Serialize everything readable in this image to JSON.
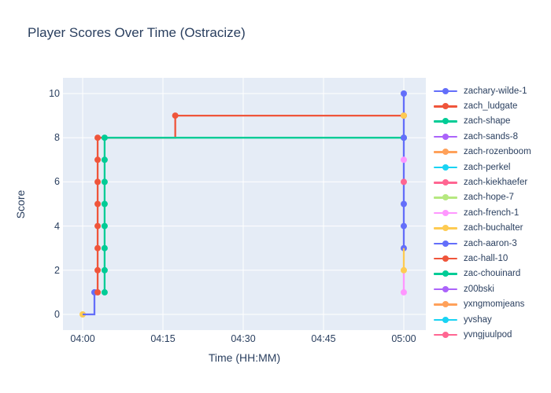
{
  "title": "Player Scores Over Time (Ostracize)",
  "axes": {
    "x_label": "Time (HH:MM)",
    "y_label": "Score",
    "x_ticks": [
      {
        "m": 0,
        "label": "04:00"
      },
      {
        "m": 15,
        "label": "04:15"
      },
      {
        "m": 30,
        "label": "04:30"
      },
      {
        "m": 45,
        "label": "04:45"
      },
      {
        "m": 60,
        "label": "05:00"
      }
    ],
    "y_ticks": [
      0,
      2,
      4,
      6,
      8,
      10
    ],
    "x_range_minutes": [
      -3.68,
      64.12
    ],
    "y_range": [
      -0.712,
      10.712
    ]
  },
  "colors": {
    "plot_background": "#E5ECF6",
    "gridline": "#FFFFFF",
    "text": "#2a3f5f"
  },
  "legend": {
    "items": [
      {
        "name": "zachary-wilde-1",
        "color": "#636EFA"
      },
      {
        "name": "zach_ludgate",
        "color": "#EF553B"
      },
      {
        "name": "zach-shape",
        "color": "#00CC96"
      },
      {
        "name": "zach-sands-8",
        "color": "#AB63FA"
      },
      {
        "name": "zach-rozenboom",
        "color": "#FFA15A"
      },
      {
        "name": "zach-perkel",
        "color": "#19D3F3"
      },
      {
        "name": "zach-kiekhaefer",
        "color": "#FF6692"
      },
      {
        "name": "zach-hope-7",
        "color": "#B6E880"
      },
      {
        "name": "zach-french-1",
        "color": "#FF97FF"
      },
      {
        "name": "zach-buchalter",
        "color": "#FECB52"
      },
      {
        "name": "zach-aaron-3",
        "color": "#636EFA"
      },
      {
        "name": "zac-hall-10",
        "color": "#EF553B"
      },
      {
        "name": "zac-chouinard",
        "color": "#00CC96"
      },
      {
        "name": "z00bski",
        "color": "#AB63FA"
      },
      {
        "name": "yxngmomjeans",
        "color": "#FFA15A"
      },
      {
        "name": "yvshay",
        "color": "#19D3F3"
      },
      {
        "name": "yvngjuulpod",
        "color": "#FF6692"
      }
    ]
  },
  "chart_data": {
    "type": "line",
    "title": "Player Scores Over Time (Ostracize)",
    "xlabel": "Time (HH:MM)",
    "ylabel": "Score",
    "x_unit": "minutes after 04:00",
    "ylim": [
      -0.712,
      10.712
    ],
    "grid": true,
    "legend_position": "right",
    "line_shape": "hv",
    "series": [
      {
        "name": "zach-buchalter",
        "color": "#FECB52",
        "line": [],
        "markers": [
          [
            0,
            0
          ]
        ]
      },
      {
        "name": "zachary-wilde-1",
        "color": "#636EFA",
        "line": [
          [
            0,
            0
          ],
          [
            2.2,
            1
          ]
        ],
        "markers": [
          [
            2.2,
            1
          ]
        ]
      },
      {
        "name": "zach_ludgate",
        "color": "#EF553B",
        "line": [
          [
            2.8,
            1
          ],
          [
            2.8,
            2
          ],
          [
            2.8,
            3
          ],
          [
            2.8,
            4
          ],
          [
            2.8,
            5
          ],
          [
            2.8,
            6
          ],
          [
            2.8,
            7
          ],
          [
            2.8,
            8
          ],
          [
            17.3,
            9
          ],
          [
            60,
            9
          ]
        ],
        "markers": [
          [
            2.8,
            1
          ],
          [
            2.8,
            2
          ],
          [
            2.8,
            3
          ],
          [
            2.8,
            4
          ],
          [
            2.8,
            5
          ],
          [
            2.8,
            6
          ],
          [
            2.8,
            7
          ],
          [
            2.8,
            8
          ],
          [
            17.3,
            9
          ],
          [
            60,
            9
          ]
        ]
      },
      {
        "name": "zach-shape",
        "color": "#00CC96",
        "line": [
          [
            4.1,
            1
          ],
          [
            4.1,
            2
          ],
          [
            4.1,
            3
          ],
          [
            4.1,
            4
          ],
          [
            4.1,
            5
          ],
          [
            4.1,
            6
          ],
          [
            4.1,
            7
          ],
          [
            4.1,
            8
          ],
          [
            60,
            8
          ]
        ],
        "markers": [
          [
            4.1,
            1
          ],
          [
            4.1,
            2
          ],
          [
            4.1,
            3
          ],
          [
            4.1,
            4
          ],
          [
            4.1,
            5
          ],
          [
            4.1,
            6
          ],
          [
            4.1,
            7
          ],
          [
            4.1,
            8
          ],
          [
            60,
            8
          ]
        ]
      },
      {
        "name": "zach-aaron-3",
        "color": "#636EFA",
        "line": [
          [
            60,
            3
          ],
          [
            60,
            10
          ]
        ],
        "markers": [
          [
            60,
            3
          ],
          [
            60,
            4
          ],
          [
            60,
            5
          ],
          [
            60,
            8
          ],
          [
            60,
            10
          ]
        ]
      },
      {
        "name": "yvngjuulpod",
        "color": "#FF6692",
        "line": [],
        "markers": [
          [
            60,
            6
          ]
        ]
      },
      {
        "name": "zach-french-1",
        "color": "#FF97FF",
        "line": [
          [
            60,
            1
          ],
          [
            60,
            2
          ]
        ],
        "markers": [
          [
            60,
            1
          ],
          [
            60,
            7
          ]
        ]
      },
      {
        "name": "zach-buchalter",
        "color": "#FECB52",
        "line": [
          [
            60,
            2
          ],
          [
            60,
            3
          ]
        ],
        "markers": [
          [
            60,
            2
          ],
          [
            60,
            9
          ]
        ]
      }
    ]
  }
}
